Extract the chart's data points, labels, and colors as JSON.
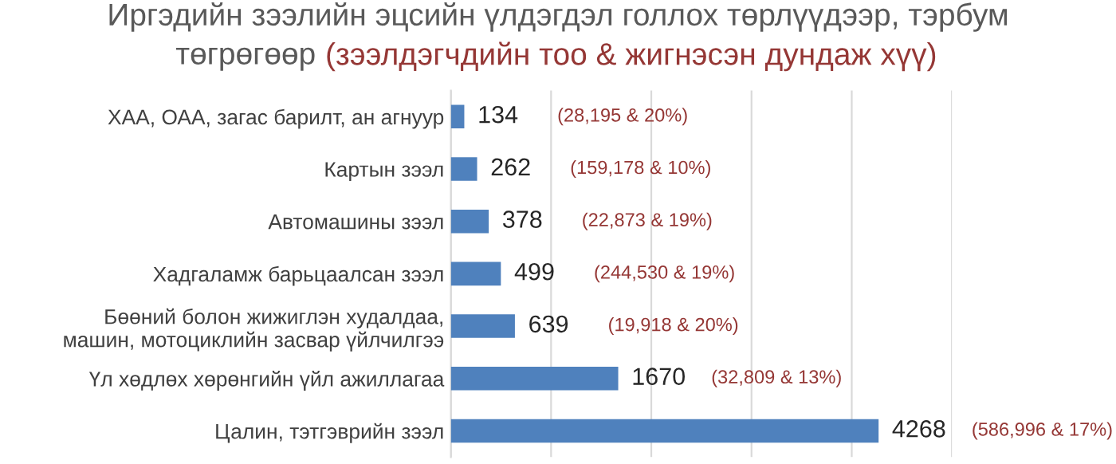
{
  "chart_data": {
    "type": "bar",
    "orientation": "horizontal",
    "title": "Иргэдийн зээлийн эцсийн үлдэгдэл голлох төрлүүдээр, тэрбум төгрөгөөр",
    "subtitle": "(зээлдэгчдийн тоо & жигнэсэн дундаж хүү)",
    "categories": [
      "ХАА, ОАА, загас барилт, ан агнуур",
      "Картын зээл",
      "Автомашины зээл",
      "Хадгаламж барьцаалсан зээл",
      "Бөөний болон жижиглэн худалдаа, машин, мотоциклийн засвар үйлчилгээ",
      "Үл хөдлөх хөрөнгийн үйл ажиллагаа",
      "Цалин, тэтгэврийн зээл"
    ],
    "values": [
      134,
      262,
      378,
      499,
      639,
      1670,
      4268
    ],
    "color": "#4f81bd",
    "data_labels": true,
    "xlim": [
      0,
      5000
    ],
    "xticks": [
      {
        "value": 0,
        "label": null
      },
      {
        "value": 1000,
        "label": null
      },
      {
        "value": 2000,
        "label": null
      },
      {
        "value": 3000,
        "label": null
      },
      {
        "value": 4000,
        "label": null
      },
      {
        "value": 5000,
        "label": null
      }
    ],
    "grid": "x",
    "annotations": [
      "(28,195 & 20%)",
      "(159,178 & 10%)",
      "(22,873 & 19%)",
      "(244,530 & 19%)",
      "(19,918 & 20%)",
      "(32,809 & 13%)",
      "(586,996 & 17%)"
    ]
  }
}
